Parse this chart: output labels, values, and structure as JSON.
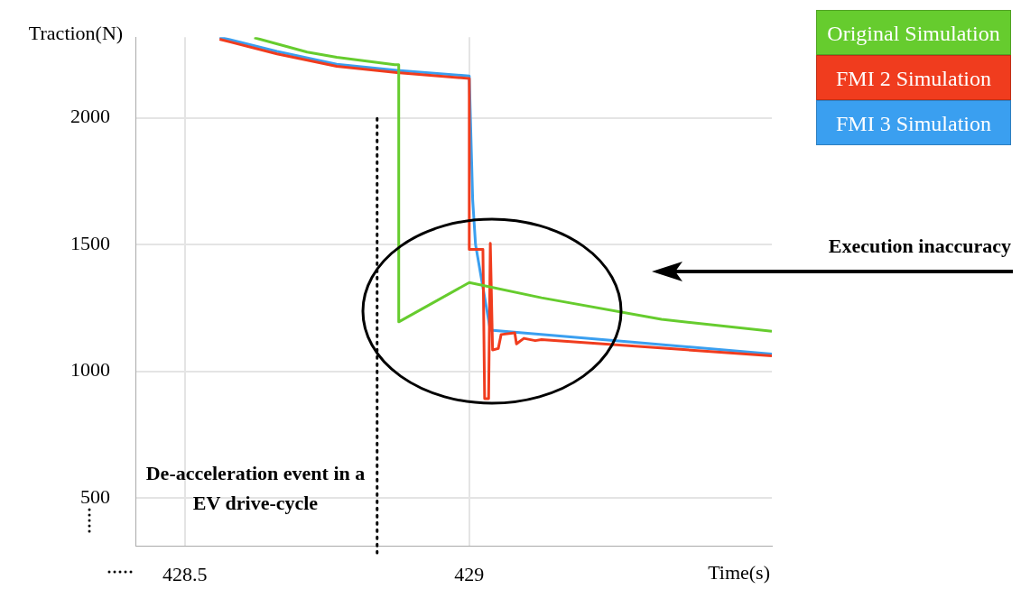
{
  "chart_data": {
    "type": "line",
    "xlabel": "Time(s)",
    "ylabel": "Traction(N)",
    "xlim": [
      428.413,
      429.532
    ],
    "xticks": [
      428.5,
      429
    ],
    "ylim": [
      312,
      2318
    ],
    "yticks": [
      500,
      1000,
      1500,
      2000
    ],
    "grid": true,
    "legend": "top right",
    "marker": "none",
    "line_style": "solid",
    "series": [
      {
        "name": "Original Simulation",
        "color": "#66cc2e",
        "x": [
          428.622,
          428.715,
          428.767,
          428.869,
          428.876,
          428.876,
          429.0,
          429.127,
          429.338,
          429.532
        ],
        "values": [
          2316,
          2259,
          2239,
          2209,
          2209,
          1195,
          1350,
          1290,
          1205,
          1158
        ]
      },
      {
        "name": "FMI 2 Simulation",
        "color": "#f03c1e",
        "x": [
          428.561,
          428.662,
          428.767,
          428.873,
          429.0,
          429.0,
          429.024,
          429.027,
          429.034,
          429.037,
          429.041,
          429.051,
          429.056,
          429.08,
          429.083,
          429.096,
          429.116,
          429.127,
          429.286,
          429.532
        ],
        "values": [
          2310,
          2252,
          2203,
          2178,
          2155,
          1481,
          1481,
          892,
          892,
          1505,
          1084,
          1090,
          1145,
          1152,
          1108,
          1130,
          1121,
          1125,
          1100,
          1061
        ]
      },
      {
        "name": "FMI 3 Simulation",
        "color": "#3a9ff0",
        "x": [
          428.561,
          428.662,
          428.767,
          428.873,
          429.0,
          429.006,
          429.011,
          429.037,
          429.286,
          429.532
        ],
        "values": [
          2318,
          2262,
          2211,
          2187,
          2165,
          1677,
          1500,
          1162,
          1115,
          1068
        ]
      }
    ],
    "ref_lines": [
      {
        "axis": "x",
        "value": 428.838,
        "color": "#000000",
        "line_style": "dotted"
      }
    ],
    "annotations": [
      "De-acceleration event in a EV drive-cycle",
      "Execution inaccuracy"
    ]
  }
}
